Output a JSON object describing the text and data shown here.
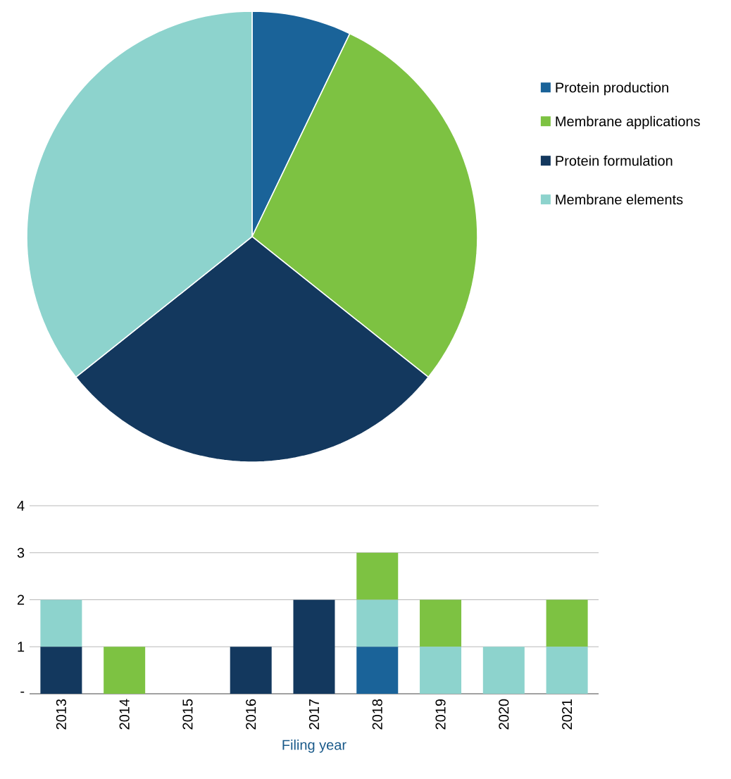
{
  "chart_data": [
    {
      "type": "pie",
      "categories": [
        "Protein production",
        "Membrane applications",
        "Protein formulation",
        "Membrane elements"
      ],
      "values": [
        7.14,
        28.57,
        28.57,
        35.71
      ],
      "colors": [
        "#1a6399",
        "#7dc242",
        "#13385e",
        "#8dd3cd"
      ],
      "legend": "right"
    },
    {
      "type": "bar",
      "stacked": true,
      "xlabel": "Filing year",
      "categories": [
        "2013",
        "2014",
        "2015",
        "2016",
        "2017",
        "2018",
        "2019",
        "2020",
        "2021"
      ],
      "series": [
        {
          "color": "#1a6399",
          "values": [
            0,
            0,
            0,
            0,
            0,
            1,
            0,
            0,
            0
          ]
        },
        {
          "color": "#13385e",
          "values": [
            1,
            0,
            0,
            1,
            2,
            0,
            0,
            0,
            0
          ]
        },
        {
          "color": "#8dd3cd",
          "values": [
            1,
            0,
            0,
            0,
            0,
            1,
            1,
            1,
            1
          ]
        },
        {
          "color": "#7dc242",
          "values": [
            0,
            1,
            0,
            0,
            0,
            1,
            1,
            0,
            1
          ]
        }
      ],
      "ylim": [
        0,
        4
      ],
      "yticks": [
        {
          "value": 0,
          "label": "-"
        },
        1,
        2,
        3,
        4
      ],
      "grid": "y",
      "legend": false
    }
  ]
}
